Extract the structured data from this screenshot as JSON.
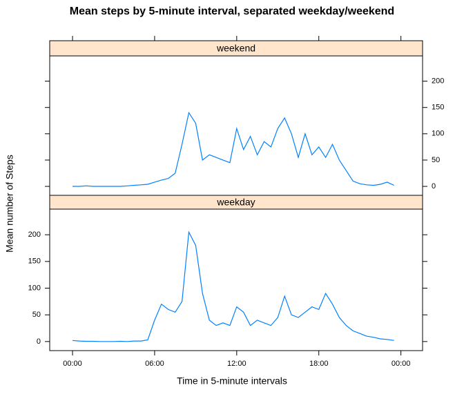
{
  "chart_data": {
    "type": "line",
    "title": "Mean steps by 5-minute interval, separated weekday/weekend",
    "xlabel": "Time in 5-minute intervals",
    "ylabel": "Mean number of Steps",
    "x": [
      0,
      30,
      60,
      90,
      120,
      150,
      180,
      210,
      240,
      270,
      300,
      330,
      360,
      390,
      420,
      450,
      480,
      510,
      540,
      570,
      600,
      630,
      660,
      690,
      720,
      750,
      780,
      810,
      840,
      870,
      900,
      930,
      960,
      990,
      1020,
      1050,
      1080,
      1110,
      1140,
      1170,
      1200,
      1230,
      1260,
      1290,
      1320,
      1350,
      1380,
      1410
    ],
    "xlim": [
      -100,
      1535
    ],
    "xticks": [
      {
        "value": 0,
        "label": "00:00"
      },
      {
        "value": 360,
        "label": "06:00"
      },
      {
        "value": 720,
        "label": "12:00"
      },
      {
        "value": 1080,
        "label": "18:00"
      },
      {
        "value": 1440,
        "label": "00:00"
      }
    ],
    "ylim": [
      -17,
      248
    ],
    "yticks": [
      0,
      50,
      100,
      150,
      200
    ],
    "series": [
      {
        "name": "weekend",
        "color": "#0080ff",
        "values": [
          0,
          0,
          1,
          0,
          0,
          0,
          0,
          0,
          1,
          2,
          3,
          4,
          8,
          12,
          15,
          25,
          80,
          140,
          120,
          50,
          60,
          55,
          50,
          45,
          110,
          70,
          95,
          60,
          85,
          75,
          110,
          130,
          100,
          55,
          100,
          60,
          75,
          55,
          80,
          50,
          30,
          10,
          5,
          3,
          2,
          4,
          8,
          2
        ]
      },
      {
        "name": "weekday",
        "color": "#0080ff",
        "values": [
          2,
          1,
          0.5,
          0.5,
          0,
          0,
          0,
          0.5,
          0,
          1,
          1,
          3,
          40,
          70,
          60,
          55,
          75,
          205,
          180,
          90,
          40,
          30,
          35,
          30,
          65,
          55,
          30,
          40,
          35,
          30,
          45,
          85,
          50,
          45,
          55,
          65,
          60,
          90,
          70,
          45,
          30,
          20,
          15,
          10,
          8,
          5,
          4,
          2
        ]
      }
    ]
  }
}
